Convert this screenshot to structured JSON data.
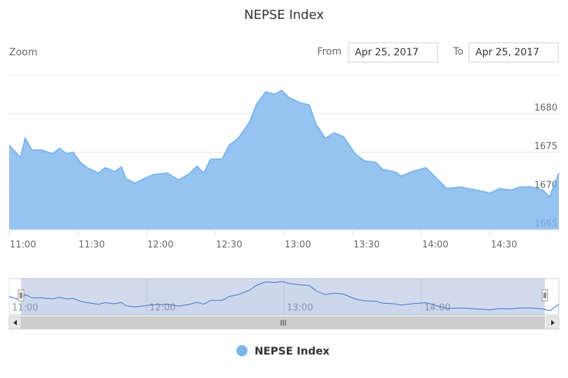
{
  "chart_data": {
    "type": "area",
    "title": "NEPSE Index",
    "zoom_label": "Zoom",
    "from_label": "From",
    "from_date": "Apr 25, 2017",
    "to_label": "To",
    "to_date": "Apr 25, 2017",
    "x": [
      660,
      665,
      667,
      670,
      674,
      679,
      682,
      685,
      688,
      691,
      694,
      699,
      702,
      706,
      709,
      711,
      715,
      719,
      723,
      729,
      734,
      739,
      742,
      745,
      748,
      753,
      756,
      760,
      765,
      768,
      772,
      776,
      779,
      782,
      787,
      791,
      794,
      798,
      802,
      806,
      811,
      815,
      820,
      823,
      829,
      831,
      836,
      842,
      847,
      851,
      857,
      864,
      870,
      874,
      879,
      883,
      888,
      893,
      896,
      900
    ],
    "series": [
      {
        "name": "NEPSE Index",
        "color": "#7cb5ec",
        "values": [
          1675.9,
          1674.3,
          1676.8,
          1675.3,
          1675.3,
          1674.8,
          1675.5,
          1674.8,
          1675.0,
          1673.7,
          1673.0,
          1672.3,
          1673.0,
          1672.5,
          1673.1,
          1671.6,
          1671.0,
          1671.6,
          1672.1,
          1672.3,
          1671.4,
          1672.3,
          1673.2,
          1672.3,
          1674.1,
          1674.1,
          1675.9,
          1676.8,
          1678.9,
          1681.2,
          1682.8,
          1682.5,
          1683.0,
          1682.1,
          1681.4,
          1681.1,
          1678.6,
          1676.8,
          1677.5,
          1677.0,
          1674.8,
          1673.9,
          1673.7,
          1672.8,
          1672.4,
          1671.9,
          1672.5,
          1673.0,
          1671.5,
          1670.3,
          1670.5,
          1670.1,
          1669.7,
          1670.3,
          1670.1,
          1670.5,
          1670.5,
          1670.1,
          1669.2,
          1672.3
        ]
      }
    ],
    "xlim": [
      660,
      900
    ],
    "xticks": [
      {
        "value": 660,
        "label": "11:00"
      },
      {
        "value": 690,
        "label": "11:30"
      },
      {
        "value": 720,
        "label": "12:00"
      },
      {
        "value": 750,
        "label": "12:30"
      },
      {
        "value": 780,
        "label": "13:00"
      },
      {
        "value": 810,
        "label": "13:30"
      },
      {
        "value": 840,
        "label": "14:00"
      },
      {
        "value": 870,
        "label": "14:30"
      }
    ],
    "ylim": [
      1665,
      1685
    ],
    "yticks": [
      1665,
      1670,
      1675,
      1680
    ],
    "grid": true,
    "navigator_xticks": [
      {
        "value": 660,
        "label": "11:00"
      },
      {
        "value": 720,
        "label": "12:00"
      },
      {
        "value": 780,
        "label": "13:00"
      },
      {
        "value": 840,
        "label": "14:00"
      }
    ]
  }
}
